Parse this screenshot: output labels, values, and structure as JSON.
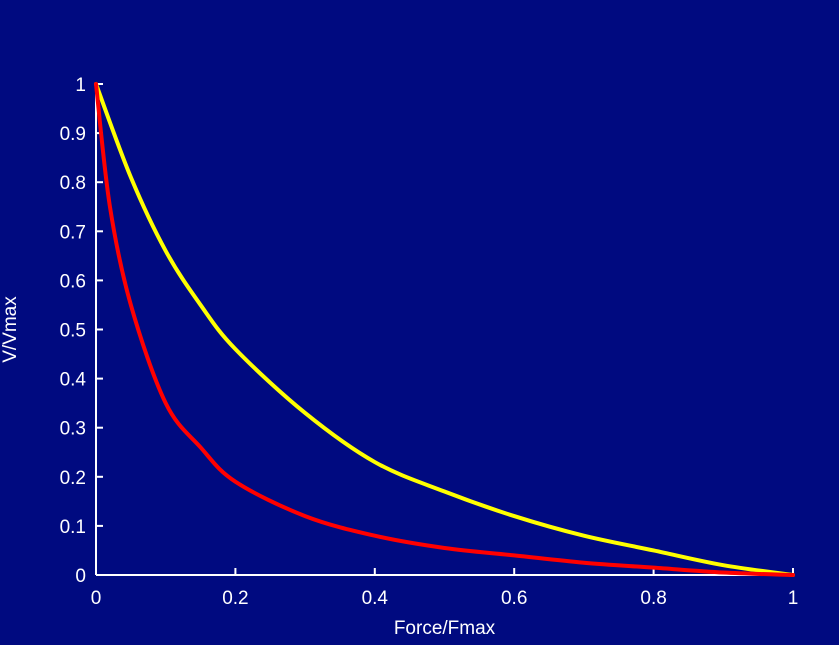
{
  "colors": {
    "background": "#000a80",
    "axis": "#ffffff",
    "series_yellow": "#ffff00",
    "series_red": "#ff0000"
  },
  "chart_data": {
    "type": "line",
    "title": "",
    "xlabel": "Force/Fmax",
    "ylabel": "V/Vmax",
    "xlim": [
      0,
      1
    ],
    "ylim": [
      0,
      1
    ],
    "grid": false,
    "x_ticks": [
      "0",
      "0.2",
      "0.4",
      "0.6",
      "0.8",
      "1"
    ],
    "y_ticks": [
      "0",
      "0.1",
      "0.2",
      "0.3",
      "0.4",
      "0.5",
      "0.6",
      "0.7",
      "0.8",
      "0.9",
      "1"
    ],
    "series": [
      {
        "color": "#ffff00",
        "x": [
          0,
          0.05,
          0.1,
          0.15,
          0.2,
          0.3,
          0.4,
          0.5,
          0.6,
          0.7,
          0.8,
          0.9,
          1
        ],
        "y": [
          1,
          0.81,
          0.66,
          0.55,
          0.46,
          0.33,
          0.23,
          0.17,
          0.12,
          0.08,
          0.05,
          0.02,
          0
        ]
      },
      {
        "color": "#ff0000",
        "x": [
          0,
          0.02,
          0.05,
          0.1,
          0.15,
          0.2,
          0.3,
          0.4,
          0.5,
          0.6,
          0.7,
          0.8,
          0.9,
          1
        ],
        "y": [
          1,
          0.75,
          0.55,
          0.35,
          0.26,
          0.19,
          0.12,
          0.08,
          0.055,
          0.04,
          0.025,
          0.015,
          0.005,
          0
        ]
      }
    ]
  }
}
